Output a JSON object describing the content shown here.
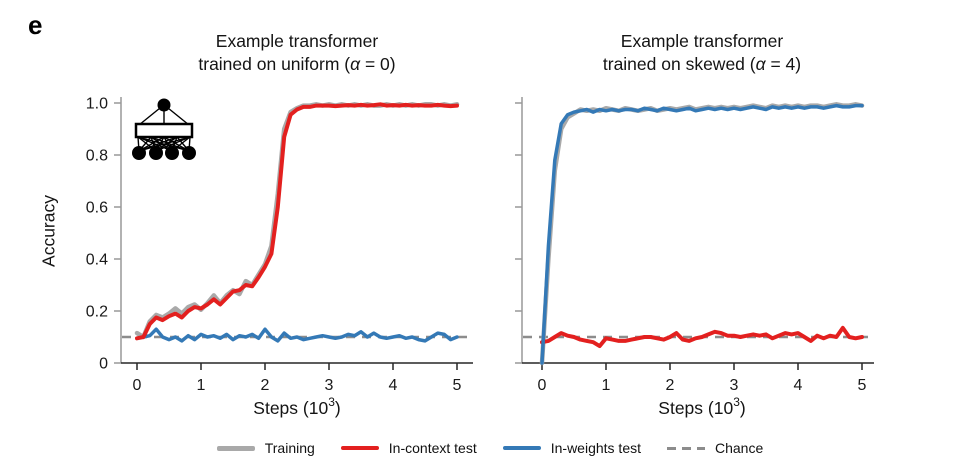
{
  "panel_label": "e",
  "colors": {
    "training": "#A9A9A9",
    "in_context": "#E3201F",
    "in_weights": "#3479B6",
    "chance": "#8C8C8C",
    "x_axis": "#262626",
    "y_axis": "#999999",
    "text": "#141414"
  },
  "chart_data": [
    {
      "type": "line",
      "title_line1": "Example transformer",
      "title_line2_pre": "trained on uniform (",
      "title_alpha": "α",
      "title_line2_post": " = 0)",
      "ylabel": "Accuracy",
      "xlabel_pre": "Steps (10",
      "xlabel_sup": "3",
      "xlabel_post": ")",
      "xlim": [
        0,
        5
      ],
      "ylim": [
        0,
        1
      ],
      "x_ticks": [
        0,
        1,
        2,
        3,
        4,
        5
      ],
      "y_tick_values": [
        0,
        0.2,
        0.4,
        0.6,
        0.8,
        1.0
      ],
      "y_tick_labels": [
        "0",
        "0.2",
        "0.4",
        "0.6",
        "0.8",
        "1.0"
      ],
      "x_start": 0,
      "x_step": 0.1,
      "chance": {
        "value": 0.1,
        "color": "#8C8C8C"
      },
      "series": [
        {
          "name": "Training",
          "key": "training",
          "color": "#A9A9A9",
          "width": 4.5,
          "values": [
            0.115,
            0.1,
            0.16,
            0.185,
            0.175,
            0.19,
            0.21,
            0.19,
            0.215,
            0.225,
            0.205,
            0.23,
            0.26,
            0.23,
            0.26,
            0.28,
            0.265,
            0.315,
            0.3,
            0.34,
            0.38,
            0.45,
            0.65,
            0.9,
            0.965,
            0.98,
            0.99,
            0.99,
            0.995,
            0.99,
            0.995,
            0.99,
            0.995,
            0.99,
            0.995,
            0.99,
            0.995,
            0.99,
            0.99,
            0.995,
            0.99,
            0.995,
            0.99,
            0.995,
            0.99,
            0.995,
            0.995,
            0.99,
            0.995,
            0.99,
            0.995
          ]
        },
        {
          "name": "In-weights test",
          "key": "in-weights-test",
          "color": "#3479B6",
          "width": 3.5,
          "values": [
            0.095,
            0.1,
            0.105,
            0.13,
            0.1,
            0.09,
            0.1,
            0.085,
            0.105,
            0.09,
            0.11,
            0.1,
            0.105,
            0.095,
            0.11,
            0.09,
            0.105,
            0.1,
            0.11,
            0.095,
            0.13,
            0.1,
            0.085,
            0.115,
            0.095,
            0.1,
            0.09,
            0.095,
            0.1,
            0.105,
            0.1,
            0.095,
            0.1,
            0.11,
            0.105,
            0.12,
            0.1,
            0.115,
            0.1,
            0.095,
            0.1,
            0.105,
            0.095,
            0.1,
            0.09,
            0.085,
            0.1,
            0.115,
            0.11,
            0.09,
            0.1
          ]
        },
        {
          "name": "In-context test",
          "key": "in-context-test",
          "color": "#E3201F",
          "width": 4,
          "values": [
            0.095,
            0.1,
            0.15,
            0.175,
            0.165,
            0.18,
            0.19,
            0.175,
            0.2,
            0.215,
            0.21,
            0.225,
            0.245,
            0.225,
            0.25,
            0.275,
            0.28,
            0.3,
            0.295,
            0.33,
            0.37,
            0.42,
            0.6,
            0.87,
            0.955,
            0.975,
            0.985,
            0.985,
            0.99,
            0.99,
            0.99,
            0.988,
            0.99,
            0.992,
            0.99,
            0.993,
            0.99,
            0.992,
            0.995,
            0.99,
            0.992,
            0.99,
            0.993,
            0.99,
            0.992,
            0.99,
            0.99,
            0.993,
            0.99,
            0.988,
            0.99
          ]
        }
      ]
    },
    {
      "type": "line",
      "title_line1": "Example transformer",
      "title_line2_pre": "trained on skewed (",
      "title_alpha": "α",
      "title_line2_post": " = 4)",
      "ylabel": "",
      "xlabel_pre": "Steps (10",
      "xlabel_sup": "3",
      "xlabel_post": ")",
      "xlim": [
        0,
        5
      ],
      "ylim": [
        0,
        1
      ],
      "x_ticks": [
        0,
        1,
        2,
        3,
        4,
        5
      ],
      "y_tick_values": [
        0,
        0.2,
        0.4,
        0.6,
        0.8,
        1.0
      ],
      "y_tick_labels": [],
      "x_start": 0,
      "x_step": 0.1,
      "chance": {
        "value": 0.1,
        "color": "#8C8C8C"
      },
      "series": [
        {
          "name": "Training",
          "key": "training",
          "color": "#A9A9A9",
          "width": 4.5,
          "values": [
            0.0,
            0.4,
            0.74,
            0.9,
            0.945,
            0.96,
            0.975,
            0.97,
            0.975,
            0.97,
            0.98,
            0.975,
            0.97,
            0.98,
            0.975,
            0.97,
            0.975,
            0.98,
            0.97,
            0.975,
            0.98,
            0.975,
            0.98,
            0.985,
            0.975,
            0.98,
            0.985,
            0.98,
            0.985,
            0.98,
            0.985,
            0.98,
            0.985,
            0.99,
            0.985,
            0.98,
            0.99,
            0.985,
            0.99,
            0.985,
            0.99,
            0.985,
            0.99,
            0.99,
            0.985,
            0.99,
            0.995,
            0.99,
            0.99,
            0.995,
            0.99
          ]
        },
        {
          "name": "In-context test",
          "key": "in-context-test",
          "color": "#E3201F",
          "width": 4,
          "values": [
            0.08,
            0.085,
            0.1,
            0.115,
            0.105,
            0.1,
            0.09,
            0.085,
            0.08,
            0.065,
            0.095,
            0.09,
            0.085,
            0.085,
            0.09,
            0.095,
            0.1,
            0.1,
            0.095,
            0.09,
            0.1,
            0.115,
            0.09,
            0.085,
            0.095,
            0.1,
            0.11,
            0.12,
            0.115,
            0.105,
            0.105,
            0.1,
            0.105,
            0.11,
            0.105,
            0.11,
            0.095,
            0.105,
            0.115,
            0.11,
            0.115,
            0.1,
            0.085,
            0.105,
            0.095,
            0.105,
            0.1,
            0.135,
            0.1,
            0.095,
            0.1
          ]
        },
        {
          "name": "In-weights test",
          "key": "in-weights-test",
          "color": "#3479B6",
          "width": 3.5,
          "values": [
            0.0,
            0.45,
            0.78,
            0.92,
            0.955,
            0.965,
            0.97,
            0.975,
            0.965,
            0.975,
            0.97,
            0.975,
            0.97,
            0.975,
            0.975,
            0.97,
            0.98,
            0.975,
            0.97,
            0.98,
            0.975,
            0.97,
            0.975,
            0.98,
            0.97,
            0.975,
            0.98,
            0.975,
            0.98,
            0.975,
            0.98,
            0.975,
            0.98,
            0.985,
            0.98,
            0.975,
            0.985,
            0.98,
            0.985,
            0.98,
            0.985,
            0.98,
            0.985,
            0.985,
            0.98,
            0.985,
            0.99,
            0.985,
            0.985,
            0.99,
            0.99
          ]
        }
      ]
    }
  ],
  "legend": {
    "items": [
      {
        "label": "Training",
        "color": "#A9A9A9",
        "style": "solid",
        "thickness": 5
      },
      {
        "label": "In-context test",
        "color": "#E3201F",
        "style": "solid",
        "thickness": 4
      },
      {
        "label": "In-weights test",
        "color": "#3479B6",
        "style": "solid",
        "thickness": 4
      },
      {
        "label": "Chance",
        "color": "#8C8C8C",
        "style": "dashed",
        "thickness": 3
      }
    ]
  }
}
